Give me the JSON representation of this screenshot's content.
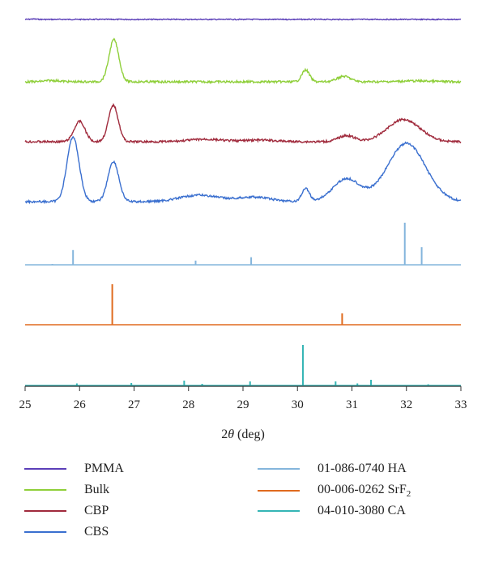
{
  "chart_data": {
    "type": "line",
    "title": "",
    "xlabel_pre": "2",
    "xlabel_theta": "θ",
    "xlabel_post": " (deg)",
    "xlim": [
      25,
      33
    ],
    "x_ticks": [
      "25",
      "26",
      "27",
      "28",
      "29",
      "30",
      "31",
      "32",
      "33"
    ],
    "series": [
      {
        "name": "PMMA",
        "color": "#5b3fb8",
        "style": "line",
        "baseline": 0,
        "x": [
          25,
          33
        ],
        "y": [
          0,
          0
        ],
        "peaks": [
          [
            25.15,
            0.08,
            0.06
          ]
        ]
      },
      {
        "name": "Bulk",
        "color": "#8fcf3a",
        "style": "line",
        "baseline": 0,
        "x": [
          25,
          33
        ],
        "y": [
          0,
          0
        ],
        "peaks": [
          [
            25.5,
            0.03,
            0.15
          ],
          [
            26.63,
            1.0,
            0.09
          ],
          [
            30.15,
            0.28,
            0.07
          ],
          [
            30.85,
            0.13,
            0.12
          ],
          [
            32.2,
            0.02,
            0.3
          ]
        ]
      },
      {
        "name": "CBP",
        "color": "#a02a3c",
        "style": "line",
        "baseline": 0,
        "x": [
          25,
          33
        ],
        "y": [
          0,
          0
        ],
        "peaks": [
          [
            26.0,
            0.5,
            0.1
          ],
          [
            26.62,
            0.9,
            0.09
          ],
          [
            28.3,
            0.06,
            0.3
          ],
          [
            29.3,
            0.04,
            0.3
          ],
          [
            30.9,
            0.15,
            0.15
          ],
          [
            31.95,
            0.55,
            0.3
          ]
        ]
      },
      {
        "name": "CBS",
        "color": "#3a6fcf",
        "style": "line",
        "baseline": 0,
        "x": [
          25,
          33
        ],
        "y": [
          0,
          0
        ],
        "peaks": [
          [
            25.88,
            1.0,
            0.11
          ],
          [
            26.62,
            0.62,
            0.1
          ],
          [
            28.2,
            0.1,
            0.35
          ],
          [
            29.2,
            0.07,
            0.3
          ],
          [
            30.15,
            0.2,
            0.07
          ],
          [
            30.9,
            0.35,
            0.25
          ],
          [
            32.0,
            0.9,
            0.35
          ]
        ]
      },
      {
        "name": "01-086-0740 HA",
        "color": "#84b5dc",
        "style": "stick",
        "sticks": [
          [
            25.88,
            0.35
          ],
          [
            28.13,
            0.1
          ],
          [
            29.15,
            0.18
          ],
          [
            31.97,
            1.0
          ],
          [
            32.28,
            0.42
          ],
          [
            25.5,
            0.02
          ]
        ]
      },
      {
        "name": "00-006-0262 SrF",
        "name_sub": "2",
        "color": "#e06a1e",
        "style": "stick",
        "sticks": [
          [
            26.6,
            1.0
          ],
          [
            30.82,
            0.28
          ]
        ]
      },
      {
        "name": "04-010-3080 CA",
        "color": "#35b5b5",
        "style": "stick",
        "sticks": [
          [
            25.95,
            0.05
          ],
          [
            26.95,
            0.06
          ],
          [
            27.92,
            0.12
          ],
          [
            28.25,
            0.04
          ],
          [
            29.13,
            0.1
          ],
          [
            30.1,
            1.0
          ],
          [
            30.7,
            0.1
          ],
          [
            31.1,
            0.05
          ],
          [
            31.35,
            0.14
          ],
          [
            32.4,
            0.03
          ]
        ]
      }
    ],
    "legend_position": "bottom"
  }
}
